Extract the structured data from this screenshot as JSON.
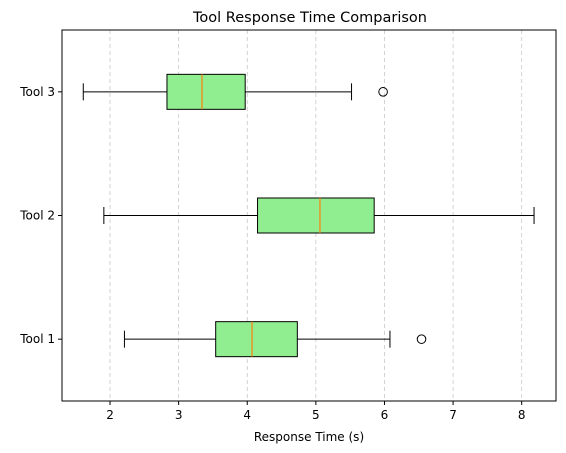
{
  "chart_data": {
    "type": "boxplot",
    "orientation": "horizontal",
    "title": "Tool Response Time Comparison",
    "xlabel": "Response Time (s)",
    "ylabel": "",
    "xlim": [
      1.3,
      8.5
    ],
    "xticks": [
      2,
      3,
      4,
      5,
      6,
      7,
      8
    ],
    "grid": {
      "x": true,
      "y": false,
      "style": "dashed"
    },
    "box_color": "#90ee90",
    "median_color": "#ff7f0e",
    "categories": [
      "Tool 1",
      "Tool 2",
      "Tool 3"
    ],
    "series": [
      {
        "name": "Tool 1",
        "whisker_low": 2.21,
        "q1": 3.54,
        "median": 4.07,
        "q3": 4.73,
        "whisker_high": 6.08,
        "outliers": [
          6.54
        ]
      },
      {
        "name": "Tool 2",
        "whisker_low": 1.91,
        "q1": 4.15,
        "median": 5.06,
        "q3": 5.85,
        "whisker_high": 8.18,
        "outliers": []
      },
      {
        "name": "Tool 3",
        "whisker_low": 1.61,
        "q1": 2.83,
        "median": 3.34,
        "q3": 3.97,
        "whisker_high": 5.52,
        "outliers": [
          5.98
        ]
      }
    ]
  }
}
